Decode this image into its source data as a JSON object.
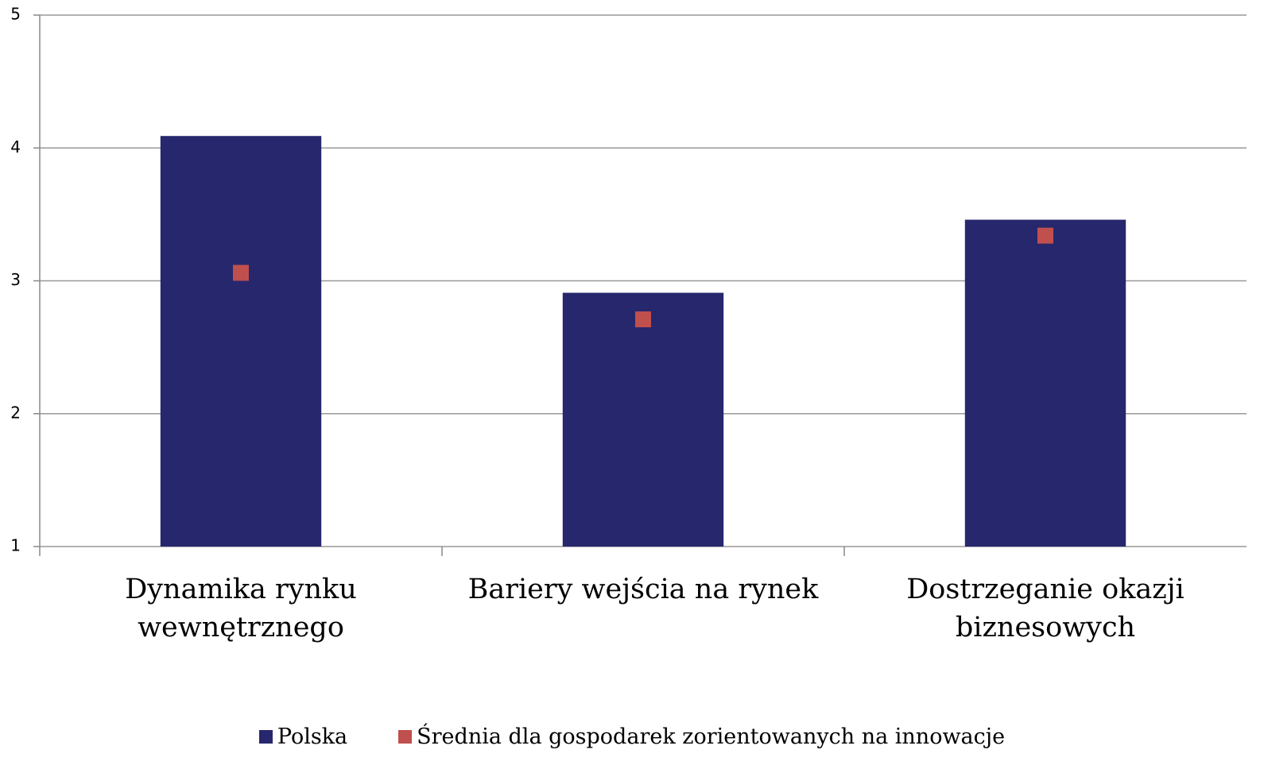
{
  "chart_data": {
    "type": "bar",
    "categories": [
      "Dynamika rynku wewnętrznego",
      "Bariery wejścia na rynek",
      "Dostrzeganie okazji biznesowych"
    ],
    "series": [
      {
        "name": "Polska",
        "color": "#27276e",
        "values": [
          4.09,
          2.91,
          3.46
        ]
      },
      {
        "name": "Średnia dla gospodarek zorientowanych na innowacje",
        "color": "#c0504d",
        "values": [
          3.06,
          2.71,
          3.34
        ],
        "type": "scatter"
      }
    ],
    "ylim": [
      1,
      5
    ],
    "yticks": [
      1,
      2,
      3,
      4,
      5
    ],
    "grid": true,
    "legend": "bottom"
  }
}
